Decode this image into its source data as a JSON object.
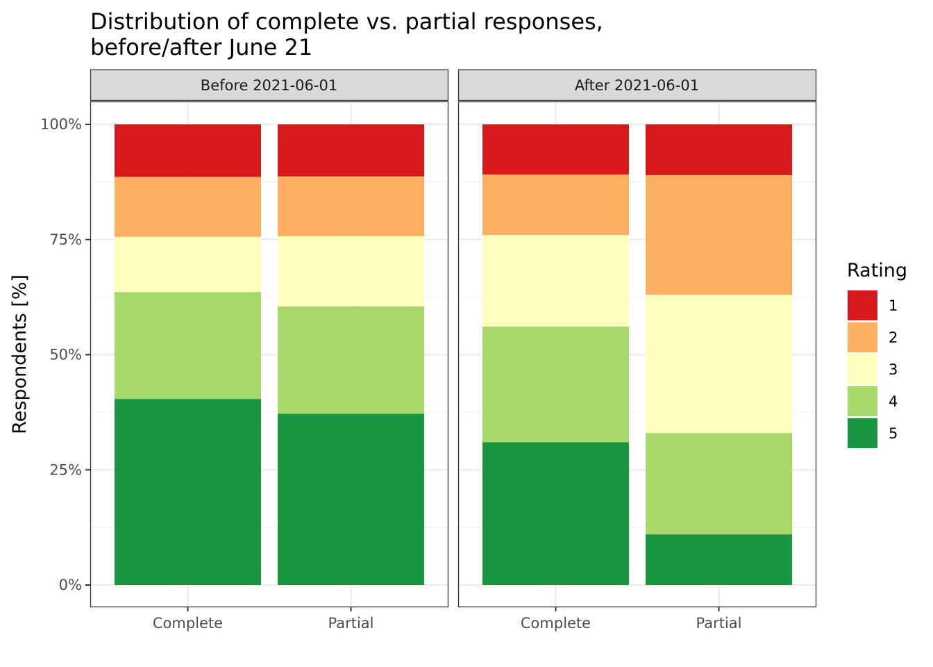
{
  "chart_data": {
    "type": "bar",
    "stacked": true,
    "title_lines": [
      "Distribution of complete vs. partial responses,",
      "before/after June 21"
    ],
    "xlabel": "",
    "ylabel": "Respondents [%]",
    "ylim": [
      0,
      100
    ],
    "y_ticks": [
      0,
      25,
      50,
      75,
      100
    ],
    "y_tick_labels": [
      "0%",
      "25%",
      "50%",
      "75%",
      "100%"
    ],
    "grid": true,
    "categories": [
      "Complete",
      "Partial"
    ],
    "legend": {
      "title": "Rating",
      "position": "right"
    },
    "ratings": [
      {
        "name": "1",
        "color": "#d7191c"
      },
      {
        "name": "2",
        "color": "#fdae61"
      },
      {
        "name": "3",
        "color": "#ffffbf"
      },
      {
        "name": "4",
        "color": "#a6d96a"
      },
      {
        "name": "5",
        "color": "#1a9641"
      }
    ],
    "panels": [
      {
        "label": "Before 2021-06-01",
        "bars": [
          {
            "category": "Complete",
            "values": {
              "5": 40.4,
              "4": 23.2,
              "3": 12.0,
              "2": 13.0,
              "1": 11.4
            }
          },
          {
            "category": "Partial",
            "values": {
              "5": 37.2,
              "4": 23.3,
              "3": 15.2,
              "2": 13.0,
              "1": 11.3
            }
          }
        ]
      },
      {
        "label": "After 2021-06-01",
        "bars": [
          {
            "category": "Complete",
            "values": {
              "5": 31.0,
              "4": 25.1,
              "3": 19.9,
              "2": 13.1,
              "1": 10.9
            }
          },
          {
            "category": "Partial",
            "values": {
              "5": 11.0,
              "4": 22.0,
              "3": 30.0,
              "2": 26.0,
              "1": 11.0
            }
          }
        ]
      }
    ]
  }
}
